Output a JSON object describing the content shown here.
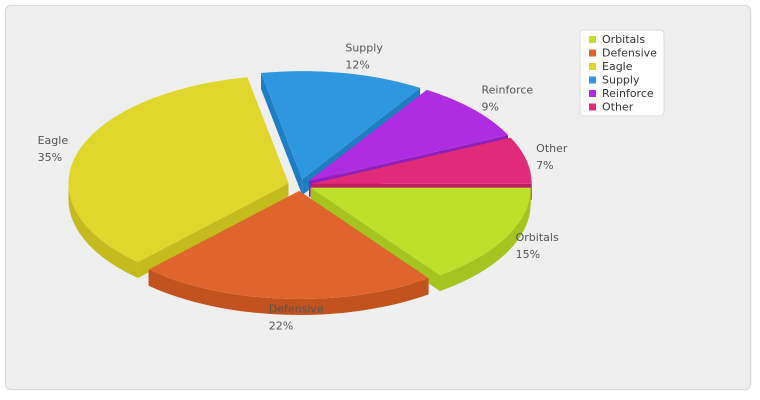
{
  "chart_data": {
    "type": "pie",
    "style": "3d-exploded",
    "title": "",
    "slices": [
      {
        "label": "Orbitals",
        "value": 15,
        "value_label": "15%",
        "color": "#bfe02a",
        "side": "#a6c41f"
      },
      {
        "label": "Defensive",
        "value": 22,
        "value_label": "22%",
        "color": "#e0652c",
        "side": "#c2531f"
      },
      {
        "label": "Eagle",
        "value": 35,
        "value_label": "35%",
        "color": "#e0d72c",
        "side": "#c4bb1e"
      },
      {
        "label": "Supply",
        "value": 12,
        "value_label": "12%",
        "color": "#2f97e0",
        "side": "#1f7dc2"
      },
      {
        "label": "Reinforce",
        "value": 9,
        "value_label": "9%",
        "color": "#b02ce0",
        "side": "#911fbd"
      },
      {
        "label": "Other",
        "value": 7,
        "value_label": "7%",
        "color": "#e02c78",
        "side": "#bd1f60"
      }
    ],
    "legend": {
      "placement": "top-right",
      "items": [
        "Orbitals",
        "Defensive",
        "Eagle",
        "Supply",
        "Reinforce",
        "Other"
      ]
    }
  }
}
